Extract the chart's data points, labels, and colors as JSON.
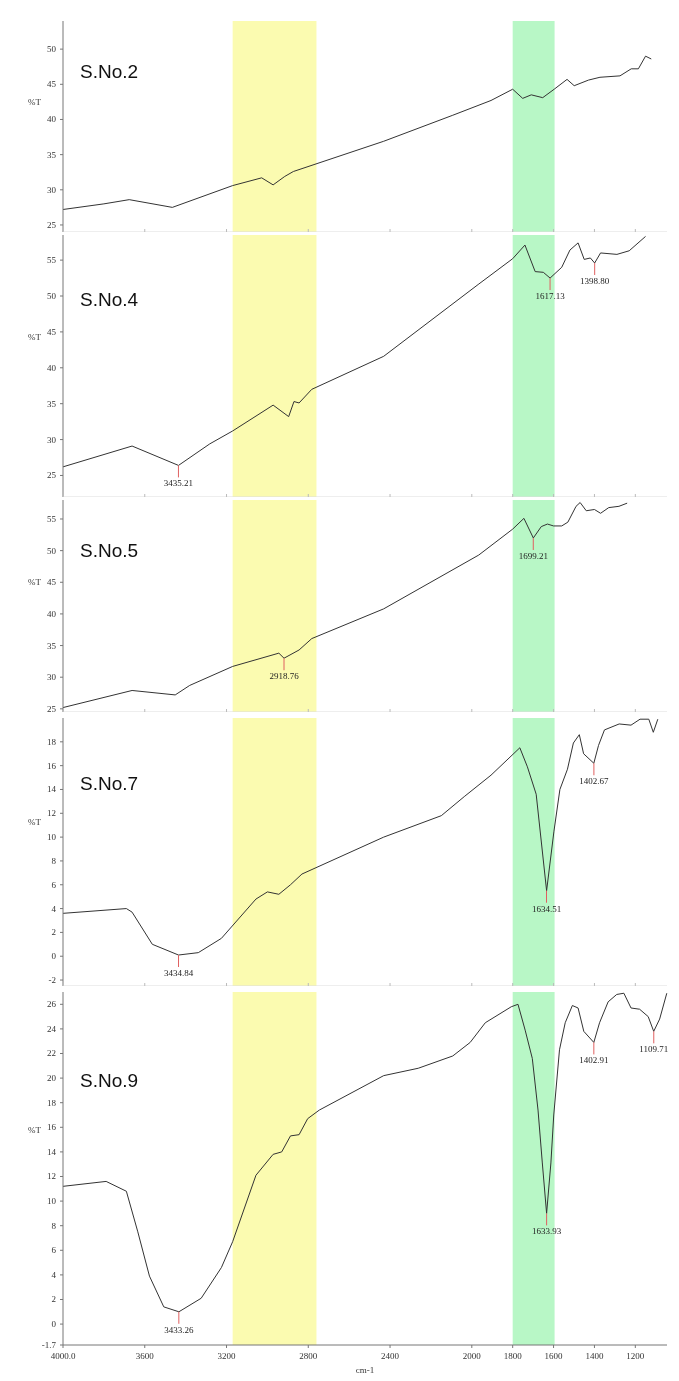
{
  "chart_data": [
    {
      "type": "line",
      "title": "S.No.2",
      "ylabel": "%T",
      "tick_labels": "y",
      "xlim": [
        4000,
        1045
      ],
      "xticks": [
        4000,
        3600,
        3200,
        2800,
        2400,
        2000,
        1800,
        1600,
        1400,
        1200
      ],
      "ylim": [
        24,
        54
      ],
      "yticks": [
        25,
        30,
        35,
        40,
        45,
        50
      ],
      "bands": [
        {
          "axis": "x",
          "from": 3170,
          "to": 2760,
          "color": "#fbfbb0"
        },
        {
          "axis": "x",
          "from": 1800,
          "to": 1595,
          "color": "#b8f7c6"
        }
      ],
      "series": [
        {
          "color": "#333333",
          "x": [
            4000,
            3800,
            3676,
            3465,
            3170,
            3028,
            2972,
            2915,
            2873,
            2431,
            2093,
            1906,
            1800,
            1751,
            1709,
            1653,
            1597,
            1534,
            1499,
            1429,
            1373,
            1275,
            1220,
            1185,
            1150,
            1122
          ],
          "values": [
            27.2,
            28.0,
            28.6,
            27.5,
            30.6,
            31.7,
            30.7,
            31.9,
            32.6,
            36.9,
            40.6,
            42.7,
            44.3,
            43.0,
            43.5,
            43.1,
            44.3,
            45.7,
            44.8,
            45.6,
            46.0,
            46.2,
            47.2,
            47.2,
            49.0,
            48.6
          ]
        }
      ]
    },
    {
      "type": "line",
      "title": "S.No.4",
      "ylabel": "%T",
      "tick_labels": "y",
      "xlim": [
        4000,
        1045
      ],
      "xticks": [
        4000,
        3600,
        3200,
        2800,
        2400,
        2000,
        1800,
        1600,
        1400,
        1200
      ],
      "ylim": [
        22,
        58.5
      ],
      "yticks": [
        25,
        30,
        35,
        40,
        45,
        50,
        55
      ],
      "bands": [
        {
          "axis": "x",
          "from": 3170,
          "to": 2760,
          "color": "#fbfbb0"
        },
        {
          "axis": "x",
          "from": 1800,
          "to": 1595,
          "color": "#b8f7c6"
        }
      ],
      "annotations": [
        {
          "text": "3435.21",
          "x": 3435.21,
          "y": 26.4
        },
        {
          "text": "1617.13",
          "x": 1617.13,
          "y": 52.5
        },
        {
          "text": "1398.80",
          "x": 1398.8,
          "y": 54.6
        }
      ],
      "series": [
        {
          "color": "#333333",
          "x": [
            4000,
            3662,
            3435,
            3282,
            3170,
            2972,
            2896,
            2870,
            2845,
            2783,
            2431,
            1969,
            1800,
            1740,
            1690,
            1650,
            1617,
            1560,
            1520,
            1480,
            1450,
            1420,
            1399,
            1370,
            1290,
            1230,
            1150
          ],
          "values": [
            26.2,
            29.1,
            26.4,
            29.4,
            31.2,
            34.8,
            33.2,
            35.3,
            35.1,
            37.0,
            41.6,
            51.6,
            55.2,
            57.1,
            53.4,
            53.3,
            52.5,
            54.0,
            56.4,
            57.4,
            55.1,
            55.3,
            54.6,
            56.0,
            55.8,
            56.3,
            58.3
          ]
        }
      ]
    },
    {
      "type": "line",
      "title": "S.No.5",
      "ylabel": "%T",
      "tick_labels": "y",
      "xlim": [
        4000,
        1045
      ],
      "xticks": [
        4000,
        3600,
        3200,
        2800,
        2400,
        2000,
        1800,
        1600,
        1400,
        1200
      ],
      "ylim": [
        24.5,
        58
      ],
      "yticks": [
        25,
        30,
        35,
        40,
        45,
        50,
        55
      ],
      "bands": [
        {
          "axis": "x",
          "from": 3170,
          "to": 2760,
          "color": "#fbfbb0"
        },
        {
          "axis": "x",
          "from": 1800,
          "to": 1595,
          "color": "#b8f7c6"
        }
      ],
      "annotations": [
        {
          "text": "2918.76",
          "x": 2918.76,
          "y": 33.0
        },
        {
          "text": "1699.21",
          "x": 1699.21,
          "y": 52.0
        }
      ],
      "series": [
        {
          "color": "#333333",
          "x": [
            4000,
            3662,
            3451,
            3380,
            3170,
            2944,
            2918.76,
            2845,
            2783,
            2431,
            1966,
            1800,
            1745,
            1699,
            1660,
            1630,
            1600,
            1560,
            1530,
            1490,
            1470,
            1440,
            1400,
            1370,
            1330,
            1280,
            1240
          ],
          "values": [
            25.2,
            27.9,
            27.2,
            28.7,
            31.7,
            33.8,
            33.0,
            34.3,
            36.1,
            40.8,
            49.3,
            53.4,
            55.1,
            52.0,
            53.8,
            54.2,
            53.9,
            53.9,
            54.5,
            57.0,
            57.6,
            56.3,
            56.5,
            55.9,
            56.8,
            57.0,
            57.5
          ]
        }
      ]
    },
    {
      "type": "line",
      "title": "S.No.7",
      "ylabel": "%T",
      "tick_labels": "y",
      "xlim": [
        4000,
        1045
      ],
      "xticks": [
        4000,
        3600,
        3200,
        2800,
        2400,
        2000,
        1800,
        1600,
        1400,
        1200
      ],
      "ylim": [
        -2.5,
        20
      ],
      "yticks": [
        -2,
        0,
        2,
        4,
        6,
        8,
        10,
        12,
        14,
        16,
        18
      ],
      "bands": [
        {
          "axis": "x",
          "from": 3170,
          "to": 2760,
          "color": "#fbfbb0"
        },
        {
          "axis": "x",
          "from": 1800,
          "to": 1595,
          "color": "#b8f7c6"
        }
      ],
      "annotations": [
        {
          "text": "3434.84",
          "x": 3434.84,
          "y": 0.1
        },
        {
          "text": "1634.51",
          "x": 1634.51,
          "y": 5.5
        },
        {
          "text": "1402.67",
          "x": 1402.67,
          "y": 16.2
        }
      ],
      "series": [
        {
          "color": "#333333",
          "x": [
            4000,
            3690,
            3662,
            3563,
            3435,
            3338,
            3225,
            3056,
            3000,
            2944,
            2887,
            2831,
            2431,
            2149,
            2037,
            1906,
            1765,
            1728,
            1685,
            1634,
            1598,
            1569,
            1532,
            1503,
            1474,
            1453,
            1403,
            1380,
            1351,
            1279,
            1221,
            1177,
            1134,
            1112,
            1090
          ],
          "values": [
            3.6,
            4.0,
            3.7,
            1.0,
            0.1,
            0.3,
            1.5,
            4.8,
            5.4,
            5.2,
            6.0,
            6.9,
            10.0,
            11.8,
            13.4,
            15.2,
            17.5,
            15.9,
            13.6,
            5.5,
            10.5,
            14.0,
            15.7,
            17.9,
            18.6,
            17.0,
            16.2,
            17.7,
            19.0,
            19.5,
            19.4,
            19.9,
            19.9,
            18.8,
            19.9
          ]
        }
      ]
    },
    {
      "type": "line",
      "title": "S.No.9",
      "ylabel": "%T",
      "xlabel": "cm-1",
      "xlim": [
        4000,
        1045
      ],
      "xticks": [
        {
          "value": 4000,
          "label": "4000.0"
        },
        3600,
        3200,
        2800,
        2400,
        2000,
        1800,
        1600,
        1400,
        1200
      ],
      "ylim": [
        -1.7,
        27
      ],
      "yticks": [
        -1.7,
        0,
        2,
        4,
        6,
        8,
        10,
        12,
        14,
        16,
        18,
        20,
        22,
        24,
        26
      ],
      "bands": [
        {
          "axis": "x",
          "from": 3170,
          "to": 2760,
          "color": "#fbfbb0"
        },
        {
          "axis": "x",
          "from": 1800,
          "to": 1595,
          "color": "#b8f7c6"
        }
      ],
      "annotations": [
        {
          "text": "3433.26",
          "x": 3433.26,
          "y": 1.0
        },
        {
          "text": "1633.93",
          "x": 1633.93,
          "y": 9.0
        },
        {
          "text": "1402.91",
          "x": 1402.91,
          "y": 22.9
        },
        {
          "text": "1109.71",
          "x": 1109.71,
          "y": 23.8
        }
      ],
      "series": [
        {
          "color": "#333333",
          "x": [
            4000,
            3789,
            3690,
            3634,
            3577,
            3507,
            3433,
            3324,
            3225,
            3170,
            3056,
            2972,
            2930,
            2887,
            2845,
            2803,
            2746,
            2431,
            2262,
            2093,
            2008,
            1934,
            1807,
            1774,
            1739,
            1704,
            1676,
            1655,
            1634,
            1613,
            1599,
            1571,
            1543,
            1508,
            1480,
            1452,
            1403,
            1375,
            1333,
            1291,
            1256,
            1221,
            1179,
            1137,
            1110,
            1081,
            1046
          ],
          "values": [
            11.2,
            11.6,
            10.8,
            7.5,
            3.9,
            1.4,
            1.0,
            2.1,
            4.6,
            6.7,
            12.1,
            13.8,
            14.0,
            15.3,
            15.4,
            16.7,
            17.4,
            20.2,
            20.8,
            21.8,
            22.9,
            24.5,
            25.8,
            26.0,
            23.9,
            21.6,
            17.4,
            13.1,
            9.0,
            13.1,
            17.0,
            22.3,
            24.5,
            25.9,
            25.7,
            23.8,
            22.9,
            24.5,
            26.2,
            26.8,
            26.9,
            25.7,
            25.6,
            25.0,
            23.8,
            24.8,
            26.9
          ]
        }
      ]
    }
  ]
}
